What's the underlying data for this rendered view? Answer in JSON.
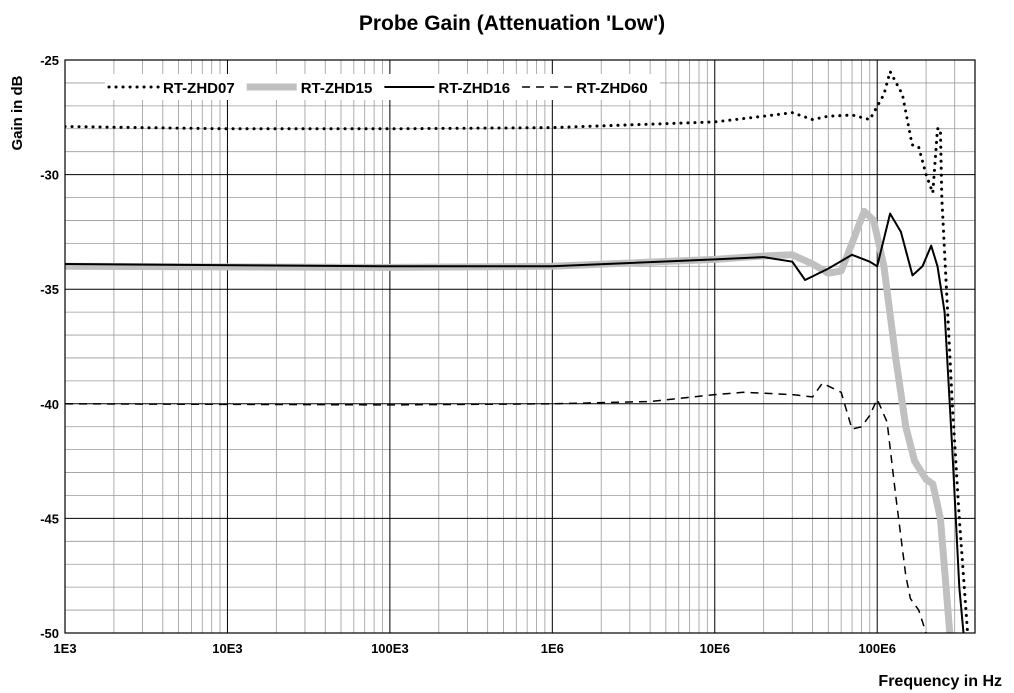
{
  "chart_data": {
    "type": "line",
    "title": "Probe Gain (Attenuation 'Low')",
    "xlabel": "Frequency in Hz",
    "ylabel": "Gain in dB",
    "xscale": "log",
    "xlim": [
      1000,
      400000000
    ],
    "ylim": [
      -50,
      -25
    ],
    "xticks": [
      {
        "value": 1000,
        "label": "1E3"
      },
      {
        "value": 10000,
        "label": "10E3"
      },
      {
        "value": 100000,
        "label": "100E3"
      },
      {
        "value": 1000000,
        "label": "1E6"
      },
      {
        "value": 10000000,
        "label": "10E6"
      },
      {
        "value": 100000000,
        "label": "100E6"
      }
    ],
    "yticks": [
      -25,
      -30,
      -35,
      -40,
      -45,
      -50
    ],
    "grid": true,
    "legend": "top",
    "series": [
      {
        "name": "RT-ZHD07",
        "color": "#000000",
        "line_style": "dotted",
        "linewidth": 3,
        "x": [
          1000,
          10000,
          100000,
          1000000,
          10000000,
          20000000,
          30000000,
          40000000,
          50000000,
          70000000,
          90000000,
          110000000,
          120000000,
          143000000,
          164000000,
          180000000,
          200000000,
          220000000,
          235000000,
          245000000,
          250000000,
          290000000,
          320000000,
          360000000
        ],
        "values": [
          -27.9,
          -28.0,
          -28.0,
          -27.95,
          -27.7,
          -27.45,
          -27.3,
          -27.6,
          -27.45,
          -27.4,
          -27.6,
          -26.5,
          -25.5,
          -26.5,
          -28.7,
          -28.8,
          -30.0,
          -30.8,
          -28.0,
          -28.0,
          -31,
          -40,
          -45,
          -50
        ]
      },
      {
        "name": "RT-ZHD15",
        "color": "#c0c0c0",
        "line_style": "solid",
        "linewidth": 7,
        "x": [
          1000,
          100000,
          1000000,
          10000000,
          20000000,
          30000000,
          40000000,
          50000000,
          60000000,
          70000000,
          83000000,
          95000000,
          110000000,
          130000000,
          150000000,
          170000000,
          200000000,
          220000000,
          245000000,
          280000000
        ],
        "values": [
          -34.0,
          -34.05,
          -34.0,
          -33.7,
          -33.55,
          -33.5,
          -33.9,
          -34.3,
          -34.2,
          -33.0,
          -31.6,
          -32.0,
          -34.0,
          -38.0,
          -41.0,
          -42.5,
          -43.3,
          -43.5,
          -45.0,
          -50.0
        ]
      },
      {
        "name": "RT-ZHD16",
        "color": "#000000",
        "line_style": "solid",
        "linewidth": 2,
        "x": [
          1000,
          100000,
          1000000,
          10000000,
          20000000,
          30000000,
          36000000,
          50000000,
          70000000,
          90000000,
          100000000,
          120000000,
          140000000,
          165000000,
          190000000,
          215000000,
          235000000,
          260000000,
          290000000,
          320000000,
          340000000
        ],
        "values": [
          -33.9,
          -34.0,
          -34.0,
          -33.7,
          -33.6,
          -33.8,
          -34.6,
          -34.1,
          -33.5,
          -33.8,
          -34.0,
          -31.7,
          -32.5,
          -34.4,
          -34.0,
          -33.1,
          -34.0,
          -36.0,
          -42.0,
          -48.0,
          -50.0
        ]
      },
      {
        "name": "RT-ZHD60",
        "color": "#000000",
        "line_style": "dashed",
        "linewidth": 1.5,
        "x": [
          1000,
          100000,
          1000000,
          4000000,
          10000000,
          15000000,
          30000000,
          40000000,
          46000000,
          60000000,
          70000000,
          80000000,
          90000000,
          100000000,
          115000000,
          130000000,
          150000000,
          160000000,
          180000000,
          200000000
        ],
        "values": [
          -40.0,
          -40.05,
          -40.0,
          -39.9,
          -39.6,
          -39.5,
          -39.6,
          -39.7,
          -39.1,
          -39.5,
          -41.1,
          -41.0,
          -40.5,
          -39.8,
          -40.8,
          -44.0,
          -47.5,
          -48.5,
          -49.0,
          -50.0
        ]
      }
    ]
  }
}
